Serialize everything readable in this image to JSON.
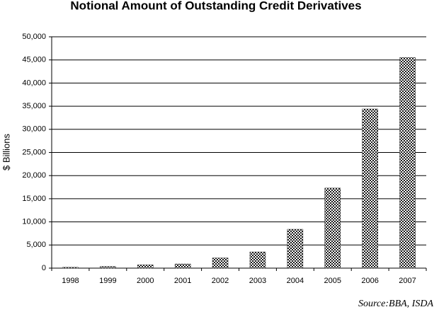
{
  "chart_data": {
    "type": "bar",
    "title": "Notional Amount of Outstanding Credit Derivatives",
    "y_label": "$ Billions",
    "source": "Source:BBA, ISDA",
    "categories": [
      "1998",
      "1999",
      "2000",
      "2001",
      "2002",
      "2003",
      "2004",
      "2005",
      "2006",
      "2007"
    ],
    "values": [
      180,
      350,
      700,
      900,
      2200,
      3500,
      8400,
      17300,
      34400,
      45500
    ],
    "color": "#1a1a1a",
    "ylim": [
      0,
      50000
    ],
    "yticks": [
      0,
      {
        "value": 5000,
        "label": "5,000"
      },
      {
        "value": 10000,
        "label": "10,000"
      },
      {
        "value": 15000,
        "label": "15,000"
      },
      {
        "value": 20000,
        "label": "20,000"
      },
      {
        "value": 25000,
        "label": "25,000"
      },
      {
        "value": 30000,
        "label": "30,000"
      },
      {
        "value": 35000,
        "label": "35,000"
      },
      {
        "value": 40000,
        "label": "40,000"
      },
      {
        "value": 45000,
        "label": "45,000"
      },
      {
        "value": 50000,
        "label": "50,000"
      }
    ],
    "grid": true
  }
}
